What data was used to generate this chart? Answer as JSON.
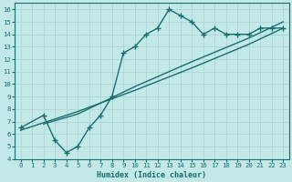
{
  "xlabel": "Humidex (Indice chaleur)",
  "ylabel": "",
  "bg_color": "#c2e8e8",
  "grid_color": "#b0d8d8",
  "line_color": "#1a6e6e",
  "xlim": [
    -0.5,
    23.5
  ],
  "ylim": [
    4,
    16.5
  ],
  "xticks": [
    0,
    1,
    2,
    3,
    4,
    5,
    6,
    7,
    8,
    9,
    10,
    11,
    12,
    13,
    14,
    15,
    16,
    17,
    18,
    19,
    20,
    21,
    22,
    23
  ],
  "yticks": [
    4,
    5,
    6,
    7,
    8,
    9,
    10,
    11,
    12,
    13,
    14,
    15,
    16
  ],
  "line1_x": [
    0,
    2,
    3,
    4,
    5,
    6,
    7,
    8,
    9,
    10,
    11,
    12,
    13,
    14,
    15,
    16,
    17,
    18,
    19,
    20,
    21,
    22,
    23
  ],
  "line1_y": [
    6.5,
    7.5,
    5.5,
    4.5,
    5.0,
    6.5,
    7.5,
    9.0,
    12.5,
    13.0,
    14.0,
    14.5,
    16.0,
    15.5,
    15.0,
    14.0,
    14.5,
    14.0,
    14.0,
    14.0,
    14.5,
    14.5,
    14.5
  ],
  "line2_x": [
    0,
    5,
    10,
    15,
    20,
    23
  ],
  "line2_y": [
    6.3,
    7.8,
    9.5,
    11.3,
    13.2,
    14.5
  ],
  "line3_x": [
    2,
    5,
    10,
    15,
    20,
    23
  ],
  "line3_y": [
    6.8,
    7.6,
    9.8,
    11.8,
    13.7,
    15.0
  ],
  "marker": "+",
  "markersize": 4,
  "linewidth": 1.0
}
